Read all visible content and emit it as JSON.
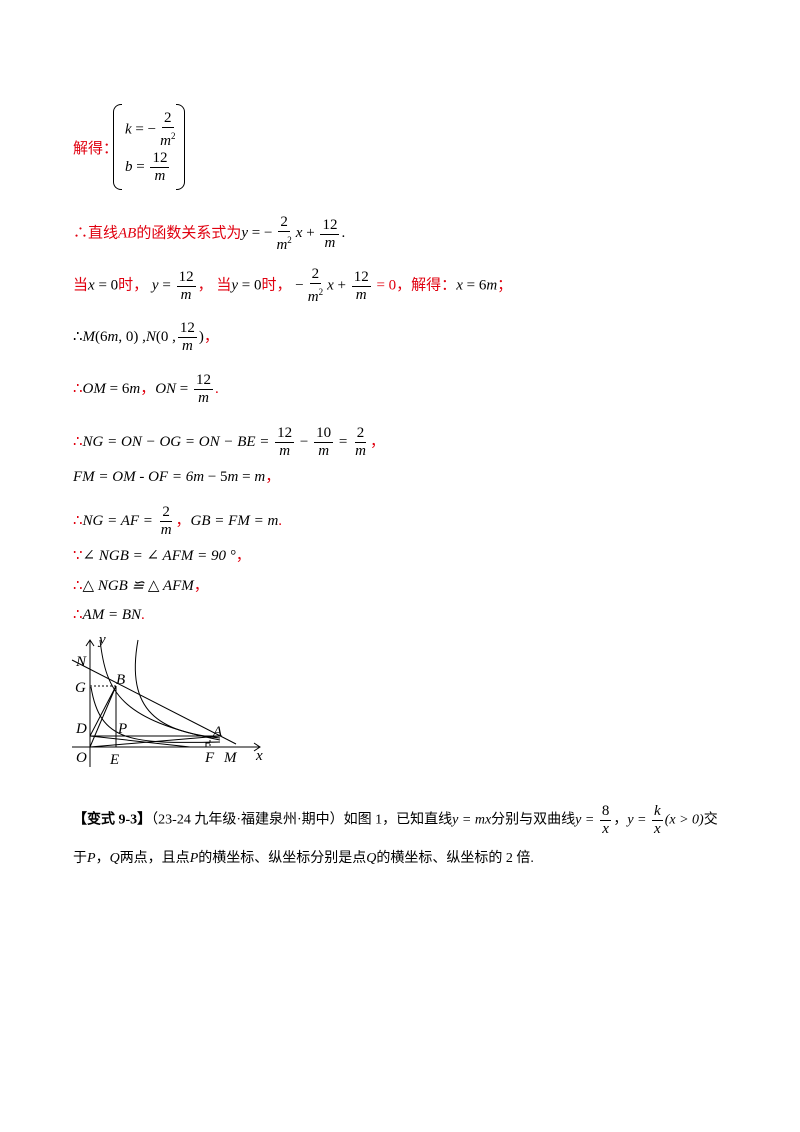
{
  "solve_label": "解得：",
  "system": {
    "k_lhs": "k",
    "k_eq": " = −",
    "k_num": "2",
    "k_den": "m",
    "k_den_exp": "2",
    "b_lhs": "b",
    "b_eq": " = ",
    "b_num": "12",
    "b_den": "m"
  },
  "line_ab": {
    "prefix": "∴直线",
    "ab": "AB",
    "text": "的函数关系式为",
    "y": "y",
    "eq": " = −",
    "num1": "2",
    "den1": "m",
    "den1_exp": "2",
    "x": "x",
    "plus": " + ",
    "num2": "12",
    "den2": "m",
    "end": "."
  },
  "intercepts": {
    "when1": "当",
    "x0": "x",
    "eq0": " = 0",
    "when1_end": "时，",
    "y": "y",
    "eq": " = ",
    "num1": "12",
    "den1": "m",
    "comma": "，",
    "when2": "当",
    "y0": "y",
    "eq2": " = 0",
    "when2_end": "时，",
    "neg": "−",
    "num2": "2",
    "den2": "m",
    "den2_exp": "2",
    "x": "x",
    "plus": " + ",
    "num3": "12",
    "den3": "m",
    "eq3": " = 0，",
    "solve": "解得：",
    "xres": "x",
    "res": " = 6",
    "m": "m",
    "end": "；"
  },
  "points_mn": {
    "therefore": "∴",
    "M": "M",
    "m_coord": "(6",
    "m": "m",
    "m_coord_end": ", 0) ,",
    "N": "N",
    "n_open": "(0 ,",
    "num": "12",
    "den": "m",
    "n_close": ")",
    "end": "，"
  },
  "om_on": {
    "therefore": "∴",
    "om": "OM",
    "eq1": " = 6",
    "m": "m",
    "sep": "，",
    "on": "ON",
    "eq2": " = ",
    "num": "12",
    "den": "m",
    "end": "."
  },
  "ng_line": {
    "therefore": "∴",
    "expr": "NG = ON − OG = ON − BE = ",
    "num1": "12",
    "den1": "m",
    "minus": " − ",
    "num2": "10",
    "den2": "m",
    "eq": " = ",
    "num3": "2",
    "den3": "m",
    "end": "，"
  },
  "fm_line": {
    "expr": "FM = OM  - OF = 6",
    "m1": "m",
    "minus": " − 5",
    "m2": "m",
    "eq": " = ",
    "m3": "m",
    "end": "，"
  },
  "ng_af_line": {
    "therefore": "∴",
    "expr1": "NG = AF = ",
    "num": "2",
    "den": "m",
    "sep": "，",
    "expr2": "GB = FM = m",
    "end": "."
  },
  "angle_line": {
    "because": "∵",
    "text": "∠ NGB = ∠ AFM = 90 °",
    "end": "，"
  },
  "cong_line": {
    "therefore": "∴",
    "text": "△ NGB ≌ △ AFM",
    "end": "，"
  },
  "am_bn_line": {
    "therefore": "∴",
    "text": "AM = BN",
    "end": "."
  },
  "figure_labels": {
    "y_axis": "y",
    "x_axis": "x",
    "N": "N",
    "G": "G",
    "B": "B",
    "D": "D",
    "P": "P",
    "A": "A",
    "O": "O",
    "E": "E",
    "F": "F",
    "M": "M"
  },
  "variant": {
    "tag": "【变式 9-3】",
    "source": "（23-24 九年级·福建泉州·期中）如图 1，已知直线",
    "line_eq": "y = mx",
    "mid": "分别与双曲线",
    "y1": "y = ",
    "num1": "8",
    "den1": "x",
    "sep": "，",
    "y2": "y = ",
    "num2": "k",
    "den2": "x",
    "cond": "(x > 0)",
    "end1": "交",
    "line2_a": "于",
    "P": "P",
    "comma": "，",
    "Q": "Q",
    "line2_b": "两点，且点",
    "P2": "P",
    "line2_c": "的横坐标、纵坐标分别是点",
    "Q2": "Q",
    "line2_d": "的横坐标、纵坐标的 2 倍."
  },
  "colors": {
    "red": "#e0000f",
    "black": "#000000"
  }
}
